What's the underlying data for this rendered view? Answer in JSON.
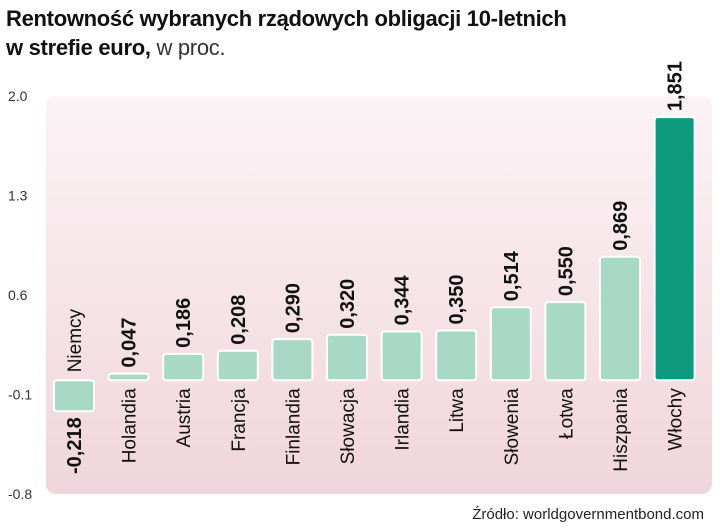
{
  "title": {
    "bold_line1": "Rentowność wybranych rządowych obligacji 10-letnich",
    "bold_line2": "w strefie euro,",
    "light_line2": " w proc."
  },
  "source": "Źródło: worldgovernmentbond.com",
  "colors": {
    "bar": "#a8d9c6",
    "bar_highlight": "#0e9a7e",
    "background_top": "#fbf3f5",
    "background_bottom": "#f0d5dc"
  },
  "chart_data": {
    "type": "bar",
    "categories": [
      "Niemcy",
      "Holandia",
      "Austria",
      "Francja",
      "Finlandia",
      "Słowacja",
      "Irlandia",
      "Litwa",
      "Słowenia",
      "Łotwa",
      "Hiszpania",
      "Włochy"
    ],
    "values": [
      -0.218,
      0.047,
      0.186,
      0.208,
      0.29,
      0.32,
      0.344,
      0.35,
      0.514,
      0.55,
      0.869,
      1.851
    ],
    "value_labels": [
      "-0,218",
      "0,047",
      "0,186",
      "0,208",
      "0,290",
      "0,320",
      "0,344",
      "0,350",
      "0,514",
      "0,550",
      "0,869",
      "1,851"
    ],
    "highlight_index": 11,
    "yticks": [
      2.0,
      1.3,
      0.6,
      -0.1,
      -0.8
    ],
    "ytick_labels": [
      "2.0",
      "1.3",
      "0.6",
      "-0.1",
      "-0.8"
    ],
    "ylim": [
      -0.8,
      2.0
    ],
    "grid": false,
    "xlabel": "",
    "ylabel": ""
  }
}
